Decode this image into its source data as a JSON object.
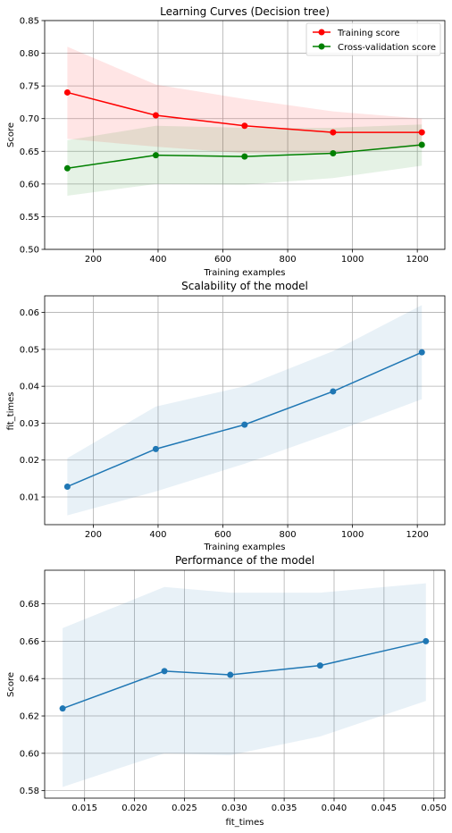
{
  "chart_data": [
    {
      "type": "line",
      "title": "Learning Curves (Decision tree)",
      "xlabel": "Training examples",
      "ylabel": "Score",
      "xlim": [
        50,
        1285
      ],
      "ylim": [
        0.5,
        0.85
      ],
      "xticks": [
        200,
        400,
        600,
        800,
        1000,
        1200
      ],
      "yticks": [
        0.5,
        0.55,
        0.6,
        0.65,
        0.7,
        0.75,
        0.8,
        0.85
      ],
      "xtick_labels": [
        "200",
        "400",
        "600",
        "800",
        "1000",
        "1200"
      ],
      "ytick_labels": [
        "0.50",
        "0.55",
        "0.60",
        "0.65",
        "0.70",
        "0.75",
        "0.80",
        "0.85"
      ],
      "grid": true,
      "legend_position": "top-right",
      "x": [
        120,
        393,
        667,
        940,
        1214
      ],
      "series": [
        {
          "name": "Training score",
          "color": "#ff0000",
          "values": [
            0.74,
            0.705,
            0.689,
            0.679,
            0.679
          ],
          "band_upper": [
            0.81,
            0.752,
            0.73,
            0.711,
            0.7
          ],
          "band_lower": [
            0.669,
            0.657,
            0.647,
            0.647,
            0.657
          ]
        },
        {
          "name": "Cross-validation score",
          "color": "#008000",
          "values": [
            0.624,
            0.644,
            0.642,
            0.647,
            0.66
          ],
          "band_upper": [
            0.667,
            0.689,
            0.686,
            0.686,
            0.691
          ],
          "band_lower": [
            0.582,
            0.6,
            0.599,
            0.609,
            0.628
          ]
        }
      ]
    },
    {
      "type": "line",
      "title": "Scalability of the model",
      "xlabel": "Training examples",
      "ylabel": "fit_times",
      "xlim": [
        50,
        1285
      ],
      "ylim": [
        0.0025,
        0.0645
      ],
      "xticks": [
        200,
        400,
        600,
        800,
        1000,
        1200
      ],
      "yticks": [
        0.01,
        0.02,
        0.03,
        0.04,
        0.05,
        0.06
      ],
      "xtick_labels": [
        "200",
        "400",
        "600",
        "800",
        "1000",
        "1200"
      ],
      "ytick_labels": [
        "0.01",
        "0.02",
        "0.03",
        "0.04",
        "0.05",
        "0.06"
      ],
      "grid": true,
      "x": [
        120,
        393,
        667,
        940,
        1214
      ],
      "series": [
        {
          "color": "#1f77b4",
          "values": [
            0.0128,
            0.023,
            0.0296,
            0.0386,
            0.0492
          ],
          "band_upper": [
            0.0205,
            0.0345,
            0.04,
            0.0495,
            0.062
          ],
          "band_lower": [
            0.005,
            0.0115,
            0.019,
            0.0275,
            0.0365
          ]
        }
      ]
    },
    {
      "type": "line",
      "title": "Performance of the model",
      "xlabel": "fit_times",
      "ylabel": "Score",
      "xlim": [
        0.011,
        0.0511
      ],
      "ylim": [
        0.576,
        0.698
      ],
      "xticks": [
        0.015,
        0.02,
        0.025,
        0.03,
        0.035,
        0.04,
        0.045,
        0.05
      ],
      "yticks": [
        0.58,
        0.6,
        0.62,
        0.64,
        0.66,
        0.68
      ],
      "xtick_labels": [
        "0.015",
        "0.020",
        "0.025",
        "0.030",
        "0.035",
        "0.040",
        "0.045",
        "0.050"
      ],
      "ytick_labels": [
        "0.58",
        "0.60",
        "0.62",
        "0.64",
        "0.66",
        "0.68"
      ],
      "grid": true,
      "x": [
        0.0128,
        0.023,
        0.0296,
        0.0386,
        0.0492
      ],
      "series": [
        {
          "color": "#1f77b4",
          "values": [
            0.624,
            0.644,
            0.642,
            0.647,
            0.66
          ],
          "band_upper": [
            0.667,
            0.689,
            0.686,
            0.686,
            0.691
          ],
          "band_lower": [
            0.582,
            0.6,
            0.599,
            0.609,
            0.628
          ]
        }
      ]
    }
  ]
}
